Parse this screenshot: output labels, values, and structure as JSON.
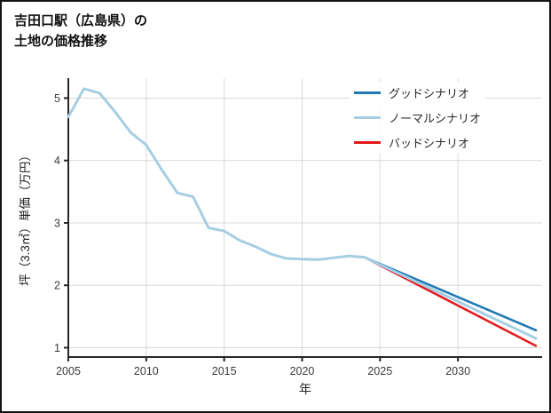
{
  "page": {
    "title_line1": "吉田口駅（広島県）の",
    "title_line2": "土地の価格推移"
  },
  "chart_data": {
    "type": "line",
    "title": "吉田口駅（広島県）の土地の価格推移",
    "xlabel": "年",
    "ylabel": "坪（3.3㎡）単価（万円）",
    "xlim": [
      2005,
      2035.4
    ],
    "ylim": [
      0.85,
      5.32
    ],
    "xticks": [
      2005,
      2010,
      2015,
      2020,
      2025,
      2030
    ],
    "yticks": [
      1,
      2,
      3,
      4,
      5
    ],
    "grid": true,
    "legend_position": "top-right",
    "colors": {
      "axis": "#262626",
      "grid": "#d9d9d9"
    },
    "series": [
      {
        "name": "グッドシナリオ",
        "color": "#1f78b4",
        "width": 2.5,
        "x": [
          2024,
          2035
        ],
        "y": [
          2.45,
          1.28
        ]
      },
      {
        "name": "ノーマルシナリオ",
        "color": "#a6cee3",
        "width": 3,
        "x": [
          2005,
          2006,
          2007,
          2008,
          2009,
          2010,
          2011,
          2012,
          2013,
          2014,
          2015,
          2016,
          2017,
          2018,
          2019,
          2020,
          2021,
          2022,
          2023,
          2024,
          2035
        ],
        "y": [
          4.7,
          5.15,
          5.08,
          4.78,
          4.45,
          4.25,
          3.85,
          3.48,
          3.42,
          2.92,
          2.87,
          2.72,
          2.62,
          2.5,
          2.43,
          2.42,
          2.41,
          2.44,
          2.47,
          2.45,
          1.15
        ]
      },
      {
        "name": "バッドシナリオ",
        "color": "#e31a1c",
        "width": 2.5,
        "x": [
          2024,
          2035
        ],
        "y": [
          2.45,
          1.03
        ]
      }
    ]
  }
}
